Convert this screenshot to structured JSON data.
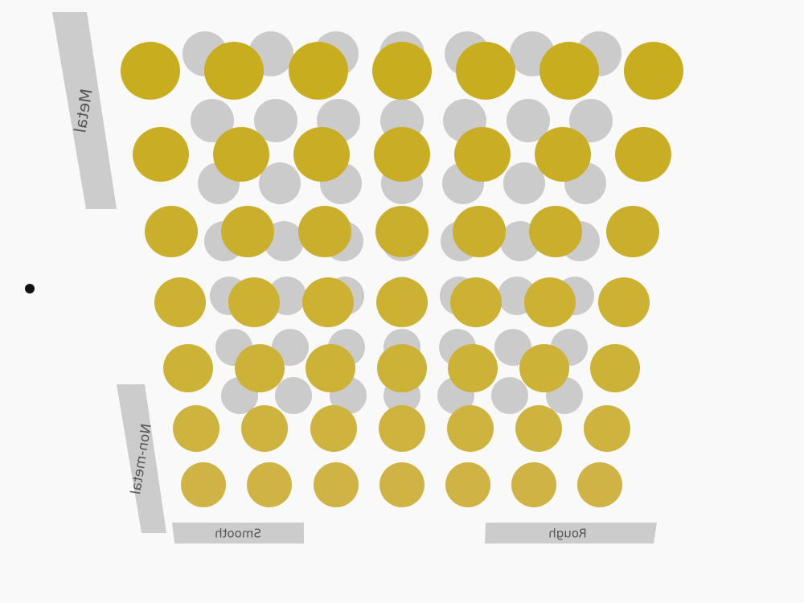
{
  "labels": {
    "metal": "Metal",
    "non_metal": "Non-metal",
    "smooth": "Smooth",
    "rough": "Rough"
  },
  "colors": {
    "background": "#f9f9f9",
    "gold_top": "#c8ad1f",
    "gold_bottom": "#cfb445",
    "grey_sphere": "#cbcbcb",
    "label_bar": "#cccccc",
    "label_text": "#555555",
    "marker": "#111111"
  }
}
